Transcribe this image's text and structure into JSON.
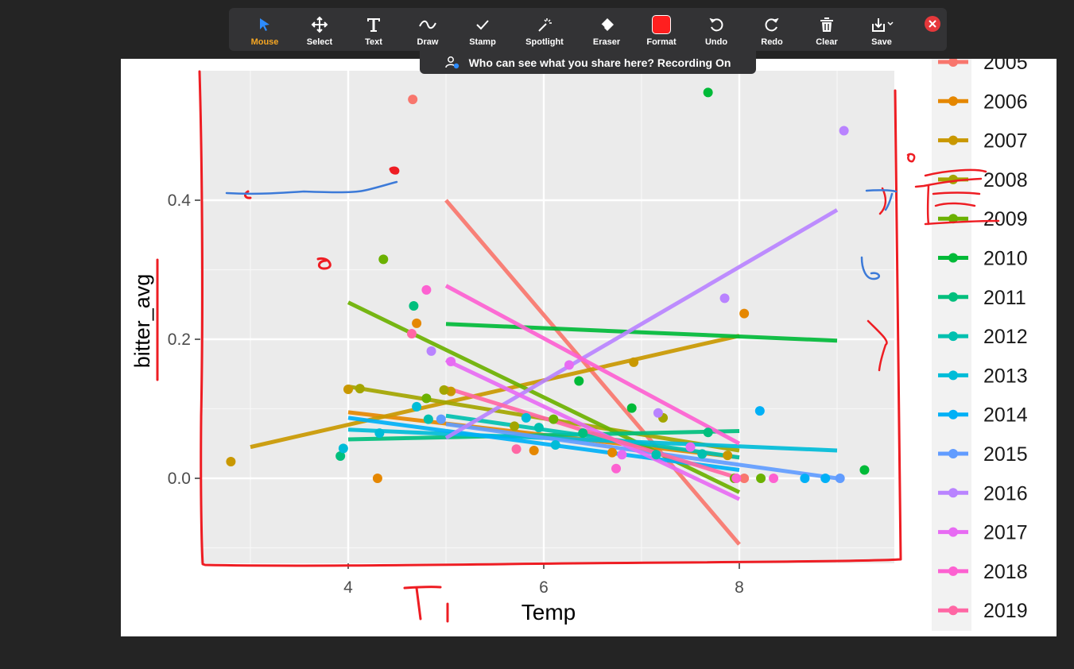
{
  "toolbar": {
    "mouse": "Mouse",
    "select": "Select",
    "text": "Text",
    "draw": "Draw",
    "stamp": "Stamp",
    "spotlight": "Spotlight",
    "eraser": "Eraser",
    "format": "Format",
    "undo": "Undo",
    "redo": "Redo",
    "clear": "Clear",
    "save": "Save",
    "active_color": "#f5a623",
    "format_color": "#ff1f1f"
  },
  "banner": {
    "text": "Who can see what you share here? Recording On"
  },
  "chart_data": {
    "type": "scatter",
    "xlabel": "Temp",
    "ylabel": "bitter_avg",
    "x_ticks": [
      "4",
      "6",
      "8"
    ],
    "y_ticks": [
      "0.0",
      "0.2",
      "0.4"
    ],
    "xlim": [
      2.5,
      9.6
    ],
    "ylim": [
      -0.13,
      0.59
    ],
    "grid": true,
    "legend_placement": "right",
    "series": [
      {
        "name": "2005",
        "color": "#F8766D",
        "points": [
          [
            4.66,
            0.545
          ],
          [
            8.05,
            0.0
          ]
        ],
        "line": [
          [
            5.0,
            0.4
          ],
          [
            8.0,
            -0.095
          ]
        ]
      },
      {
        "name": "2006",
        "color": "#E58700",
        "points": [
          [
            4.3,
            0.0
          ],
          [
            4.7,
            0.223
          ],
          [
            5.9,
            0.04
          ],
          [
            6.7,
            0.037
          ],
          [
            8.05,
            0.237
          ]
        ],
        "line": [
          [
            4.0,
            0.095
          ],
          [
            8.0,
            0.03
          ]
        ]
      },
      {
        "name": "2007",
        "color": "#C99800",
        "points": [
          [
            2.8,
            0.024
          ],
          [
            4.0,
            0.128
          ],
          [
            5.05,
            0.125
          ],
          [
            6.92,
            0.167
          ],
          [
            7.88,
            0.033
          ]
        ],
        "line": [
          [
            3.0,
            0.045
          ],
          [
            8.0,
            0.205
          ]
        ]
      },
      {
        "name": "2008",
        "color": "#A3A500",
        "points": [
          [
            4.12,
            0.129
          ],
          [
            4.98,
            0.127
          ],
          [
            5.7,
            0.075
          ],
          [
            7.22,
            0.087
          ]
        ],
        "line": [
          [
            4.0,
            0.132
          ],
          [
            8.0,
            0.04
          ]
        ]
      },
      {
        "name": "2009",
        "color": "#6BB100",
        "points": [
          [
            4.36,
            0.315
          ],
          [
            4.8,
            0.115
          ],
          [
            6.1,
            0.085
          ],
          [
            7.95,
            0.0
          ],
          [
            8.22,
            0.0
          ]
        ],
        "line": [
          [
            4.0,
            0.253
          ],
          [
            8.0,
            -0.02
          ]
        ]
      },
      {
        "name": "2010",
        "color": "#00BA38",
        "points": [
          [
            7.68,
            0.555
          ],
          [
            6.36,
            0.14
          ],
          [
            6.9,
            0.101
          ],
          [
            9.28,
            0.012
          ]
        ],
        "line": [
          [
            5.0,
            0.222
          ],
          [
            9.0,
            0.198
          ]
        ]
      },
      {
        "name": "2011",
        "color": "#00BF7D",
        "points": [
          [
            4.67,
            0.248
          ],
          [
            3.92,
            0.032
          ],
          [
            7.68,
            0.066
          ],
          [
            6.4,
            0.065
          ]
        ],
        "line": [
          [
            4.0,
            0.056
          ],
          [
            8.0,
            0.068
          ]
        ]
      },
      {
        "name": "2012",
        "color": "#00C0AF",
        "points": [
          [
            4.82,
            0.085
          ],
          [
            5.95,
            0.073
          ],
          [
            7.62,
            0.035
          ],
          [
            7.15,
            0.034
          ]
        ],
        "line": [
          [
            5.0,
            0.09
          ],
          [
            8.0,
            0.03
          ]
        ]
      },
      {
        "name": "2013",
        "color": "#00BCD8",
        "points": [
          [
            3.95,
            0.043
          ],
          [
            4.32,
            0.065
          ],
          [
            4.7,
            0.103
          ],
          [
            5.82,
            0.087
          ],
          [
            6.12,
            0.048
          ]
        ],
        "line": [
          [
            4.0,
            0.07
          ],
          [
            9.0,
            0.04
          ]
        ]
      },
      {
        "name": "2014",
        "color": "#00B0F6",
        "points": [
          [
            8.21,
            0.097
          ],
          [
            8.67,
            0.0
          ],
          [
            8.88,
            0.0
          ]
        ],
        "line": [
          [
            4.0,
            0.087
          ],
          [
            8.0,
            0.012
          ]
        ]
      },
      {
        "name": "2015",
        "color": "#619CFF",
        "points": [
          [
            4.95,
            0.085
          ],
          [
            9.03,
            0.0
          ]
        ],
        "line": [
          [
            5.0,
            0.078
          ],
          [
            9.0,
            0.0
          ]
        ]
      },
      {
        "name": "2016",
        "color": "#B983FF",
        "points": [
          [
            4.85,
            0.183
          ],
          [
            7.85,
            0.259
          ],
          [
            9.07,
            0.5
          ],
          [
            7.17,
            0.094
          ]
        ],
        "line": [
          [
            5.0,
            0.058
          ],
          [
            9.0,
            0.386
          ]
        ]
      },
      {
        "name": "2017",
        "color": "#E76BF3",
        "points": [
          [
            5.05,
            0.168
          ],
          [
            6.8,
            0.034
          ],
          [
            7.5,
            0.045
          ],
          [
            6.26,
            0.163
          ]
        ],
        "line": [
          [
            5.0,
            0.17
          ],
          [
            8.0,
            -0.03
          ]
        ]
      },
      {
        "name": "2018",
        "color": "#FD61D1",
        "points": [
          [
            4.8,
            0.271
          ],
          [
            6.74,
            0.014
          ],
          [
            7.97,
            0.0
          ],
          [
            8.35,
            0.0
          ]
        ],
        "line": [
          [
            5.0,
            0.277
          ],
          [
            8.0,
            0.05
          ]
        ]
      },
      {
        "name": "2019",
        "color": "#FF67A4",
        "points": [
          [
            5.72,
            0.042
          ],
          [
            4.65,
            0.208
          ]
        ],
        "line": [
          [
            5.0,
            0.13
          ],
          [
            8.0,
            0.0
          ]
        ]
      }
    ]
  }
}
